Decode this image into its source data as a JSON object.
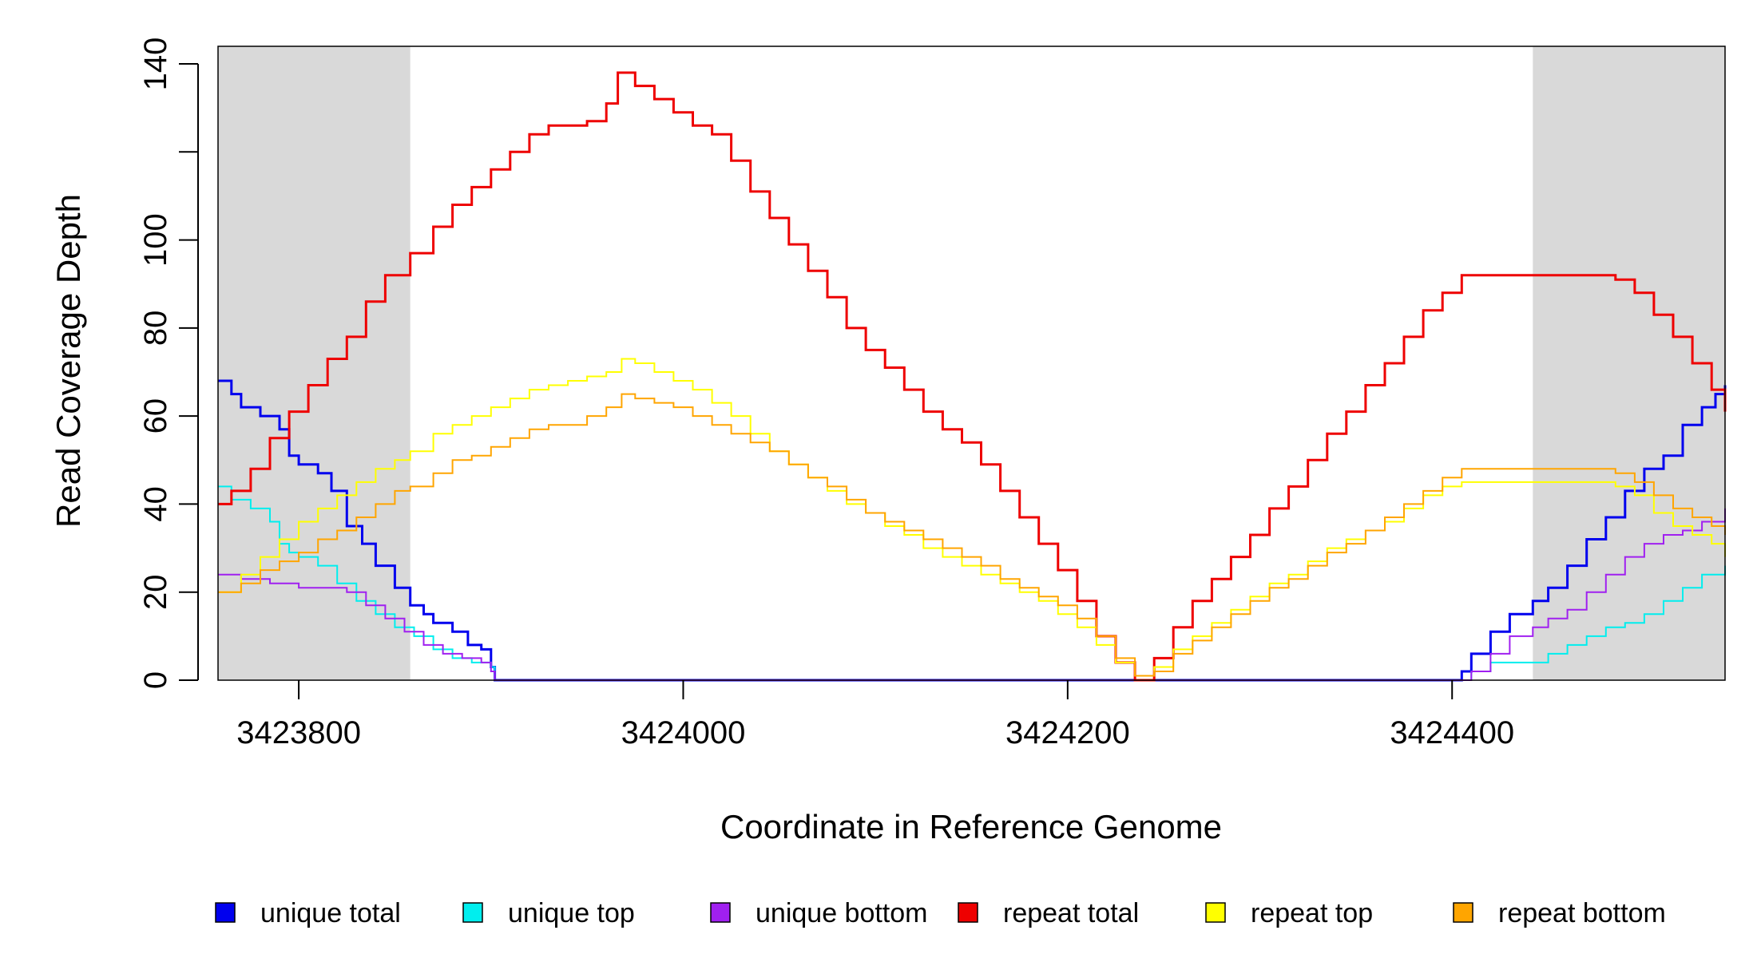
{
  "chart_data": {
    "type": "line",
    "title": "",
    "xlabel": "Coordinate in Reference Genome",
    "ylabel": "Read Coverage Depth",
    "xlim": [
      3423758,
      3424542
    ],
    "ylim": [
      0,
      140
    ],
    "x_ticks": [
      3423800,
      3424000,
      3424200,
      3424400
    ],
    "y_ticks": [
      0,
      20,
      40,
      60,
      80,
      100,
      120,
      140
    ],
    "y_tick_labels": [
      "0",
      "20",
      "40",
      "60",
      "80",
      "100",
      "",
      "140"
    ],
    "grid": false,
    "legend_position": "bottom",
    "shaded_regions": [
      {
        "x0": 3423758,
        "x1": 3423858,
        "color": "#d9d9d9"
      },
      {
        "x0": 3424442,
        "x1": 3424542,
        "color": "#d9d9d9"
      }
    ],
    "series": [
      {
        "name": "unique total",
        "color": "#0000ee",
        "stroke_width": 3,
        "x": [
          3423758,
          3423765,
          3423770,
          3423780,
          3423790,
          3423795,
          3423800,
          3423810,
          3423817,
          3423825,
          3423833,
          3423840,
          3423850,
          3423858,
          3423865,
          3423870,
          3423880,
          3423888,
          3423895,
          3423900,
          3423902,
          3424403,
          3424405,
          3424410,
          3424420,
          3424430,
          3424442,
          3424450,
          3424460,
          3424470,
          3424480,
          3424490,
          3424500,
          3424510,
          3424520,
          3424530,
          3424537,
          3424542
        ],
        "y": [
          68,
          65,
          62,
          60,
          57,
          51,
          49,
          47,
          43,
          35,
          31,
          26,
          21,
          17,
          15,
          13,
          11,
          8,
          7,
          3,
          0,
          0,
          2,
          6,
          11,
          15,
          18,
          21,
          26,
          32,
          37,
          43,
          48,
          51,
          58,
          62,
          65,
          67
        ]
      },
      {
        "name": "unique top",
        "color": "#00eeee",
        "stroke_width": 2,
        "x": [
          3423758,
          3423765,
          3423775,
          3423785,
          3423790,
          3423795,
          3423800,
          3423810,
          3423820,
          3423830,
          3423840,
          3423850,
          3423860,
          3423870,
          3423880,
          3423890,
          3423900,
          3423902,
          3424405,
          3424410,
          3424420,
          3424435,
          3424450,
          3424460,
          3424470,
          3424480,
          3424490,
          3424500,
          3424510,
          3424520,
          3424530,
          3424542
        ],
        "y": [
          44,
          41,
          39,
          36,
          31,
          29,
          28,
          26,
          22,
          18,
          15,
          12,
          10,
          7,
          5,
          4,
          3,
          0,
          0,
          2,
          4,
          4,
          6,
          8,
          10,
          12,
          13,
          15,
          18,
          21,
          24,
          26
        ]
      },
      {
        "name": "unique bottom",
        "color": "#a020f0",
        "stroke_width": 2,
        "x": [
          3423758,
          3423770,
          3423785,
          3423800,
          3423815,
          3423825,
          3423835,
          3423845,
          3423855,
          3423865,
          3423875,
          3423885,
          3423895,
          3423900,
          3423902,
          3424405,
          3424410,
          3424420,
          3424430,
          3424442,
          3424450,
          3424460,
          3424470,
          3424480,
          3424490,
          3424500,
          3424510,
          3424520,
          3424530,
          3424542
        ],
        "y": [
          24,
          23,
          22,
          21,
          21,
          20,
          17,
          14,
          11,
          8,
          6,
          5,
          4,
          2,
          0,
          0,
          2,
          6,
          10,
          12,
          14,
          16,
          20,
          24,
          28,
          31,
          33,
          34,
          36,
          39
        ]
      },
      {
        "name": "repeat total",
        "color": "#ee0000",
        "stroke_width": 3,
        "x": [
          3423758,
          3423765,
          3423775,
          3423785,
          3423795,
          3423805,
          3423815,
          3423825,
          3423835,
          3423845,
          3423858,
          3423870,
          3423880,
          3423890,
          3423900,
          3423910,
          3423920,
          3423930,
          3423940,
          3423950,
          3423960,
          3423966,
          3423975,
          3423985,
          3423995,
          3424005,
          3424015,
          3424025,
          3424035,
          3424045,
          3424055,
          3424065,
          3424075,
          3424085,
          3424095,
          3424105,
          3424115,
          3424125,
          3424135,
          3424145,
          3424155,
          3424165,
          3424175,
          3424185,
          3424195,
          3424205,
          3424215,
          3424225,
          3424235,
          3424245,
          3424255,
          3424265,
          3424275,
          3424285,
          3424295,
          3424305,
          3424315,
          3424325,
          3424335,
          3424345,
          3424355,
          3424365,
          3424375,
          3424385,
          3424395,
          3424405,
          3424420,
          3424440,
          3424460,
          3424475,
          3424485,
          3424495,
          3424505,
          3424515,
          3424525,
          3424535,
          3424542
        ],
        "y": [
          40,
          43,
          48,
          55,
          61,
          67,
          73,
          78,
          86,
          92,
          97,
          103,
          108,
          112,
          116,
          120,
          124,
          126,
          126,
          127,
          131,
          138,
          135,
          132,
          129,
          126,
          124,
          118,
          111,
          105,
          99,
          93,
          87,
          80,
          75,
          71,
          66,
          61,
          57,
          54,
          49,
          43,
          37,
          31,
          25,
          18,
          10,
          4,
          0,
          5,
          12,
          18,
          23,
          28,
          33,
          39,
          44,
          50,
          56,
          61,
          67,
          72,
          78,
          84,
          88,
          92,
          92,
          92,
          92,
          92,
          91,
          88,
          83,
          78,
          72,
          66,
          61
        ]
      },
      {
        "name": "repeat top",
        "color": "#ffff00",
        "stroke_width": 2,
        "x": [
          3423758,
          3423770,
          3423780,
          3423790,
          3423800,
          3423810,
          3423820,
          3423830,
          3423840,
          3423850,
          3423858,
          3423870,
          3423880,
          3423890,
          3423900,
          3423910,
          3423920,
          3423930,
          3423940,
          3423950,
          3423960,
          3423968,
          3423975,
          3423985,
          3423995,
          3424005,
          3424015,
          3424025,
          3424035,
          3424045,
          3424055,
          3424065,
          3424075,
          3424085,
          3424095,
          3424105,
          3424115,
          3424125,
          3424135,
          3424145,
          3424155,
          3424165,
          3424175,
          3424185,
          3424195,
          3424205,
          3424215,
          3424225,
          3424235,
          3424245,
          3424255,
          3424265,
          3424275,
          3424285,
          3424295,
          3424305,
          3424315,
          3424325,
          3424335,
          3424345,
          3424355,
          3424365,
          3424375,
          3424385,
          3424395,
          3424405,
          3424420,
          3424440,
          3424460,
          3424475,
          3424485,
          3424495,
          3424505,
          3424515,
          3424525,
          3424535,
          3424542
        ],
        "y": [
          20,
          24,
          28,
          32,
          36,
          39,
          42,
          45,
          48,
          50,
          52,
          56,
          58,
          60,
          62,
          64,
          66,
          67,
          68,
          69,
          70,
          73,
          72,
          70,
          68,
          66,
          63,
          60,
          56,
          52,
          49,
          46,
          43,
          40,
          38,
          35,
          33,
          30,
          28,
          26,
          24,
          22,
          20,
          18,
          15,
          12,
          8,
          4,
          1,
          3,
          7,
          10,
          13,
          16,
          19,
          22,
          24,
          27,
          30,
          32,
          34,
          36,
          39,
          42,
          44,
          45,
          45,
          45,
          45,
          45,
          44,
          42,
          38,
          35,
          33,
          31,
          28
        ]
      },
      {
        "name": "repeat bottom",
        "color": "#ffa500",
        "stroke_width": 2,
        "x": [
          3423758,
          3423770,
          3423780,
          3423790,
          3423800,
          3423810,
          3423820,
          3423830,
          3423840,
          3423850,
          3423858,
          3423870,
          3423880,
          3423890,
          3423900,
          3423910,
          3423920,
          3423930,
          3423940,
          3423950,
          3423960,
          3423968,
          3423975,
          3423985,
          3423995,
          3424005,
          3424015,
          3424025,
          3424035,
          3424045,
          3424055,
          3424065,
          3424075,
          3424085,
          3424095,
          3424105,
          3424115,
          3424125,
          3424135,
          3424145,
          3424155,
          3424165,
          3424175,
          3424185,
          3424195,
          3424205,
          3424215,
          3424225,
          3424235,
          3424245,
          3424255,
          3424265,
          3424275,
          3424285,
          3424295,
          3424305,
          3424315,
          3424325,
          3424335,
          3424345,
          3424355,
          3424365,
          3424375,
          3424385,
          3424395,
          3424405,
          3424420,
          3424440,
          3424460,
          3424475,
          3424485,
          3424495,
          3424505,
          3424515,
          3424525,
          3424535,
          3424542
        ],
        "y": [
          20,
          22,
          25,
          27,
          29,
          32,
          34,
          37,
          40,
          43,
          44,
          47,
          50,
          51,
          53,
          55,
          57,
          58,
          58,
          60,
          62,
          65,
          64,
          63,
          62,
          60,
          58,
          56,
          54,
          52,
          49,
          46,
          44,
          41,
          38,
          36,
          34,
          32,
          30,
          28,
          26,
          23,
          21,
          19,
          17,
          14,
          10,
          5,
          1,
          2,
          6,
          9,
          12,
          15,
          18,
          21,
          23,
          26,
          29,
          31,
          34,
          37,
          40,
          43,
          46,
          48,
          48,
          48,
          48,
          48,
          47,
          45,
          42,
          39,
          37,
          35,
          33
        ]
      }
    ]
  }
}
